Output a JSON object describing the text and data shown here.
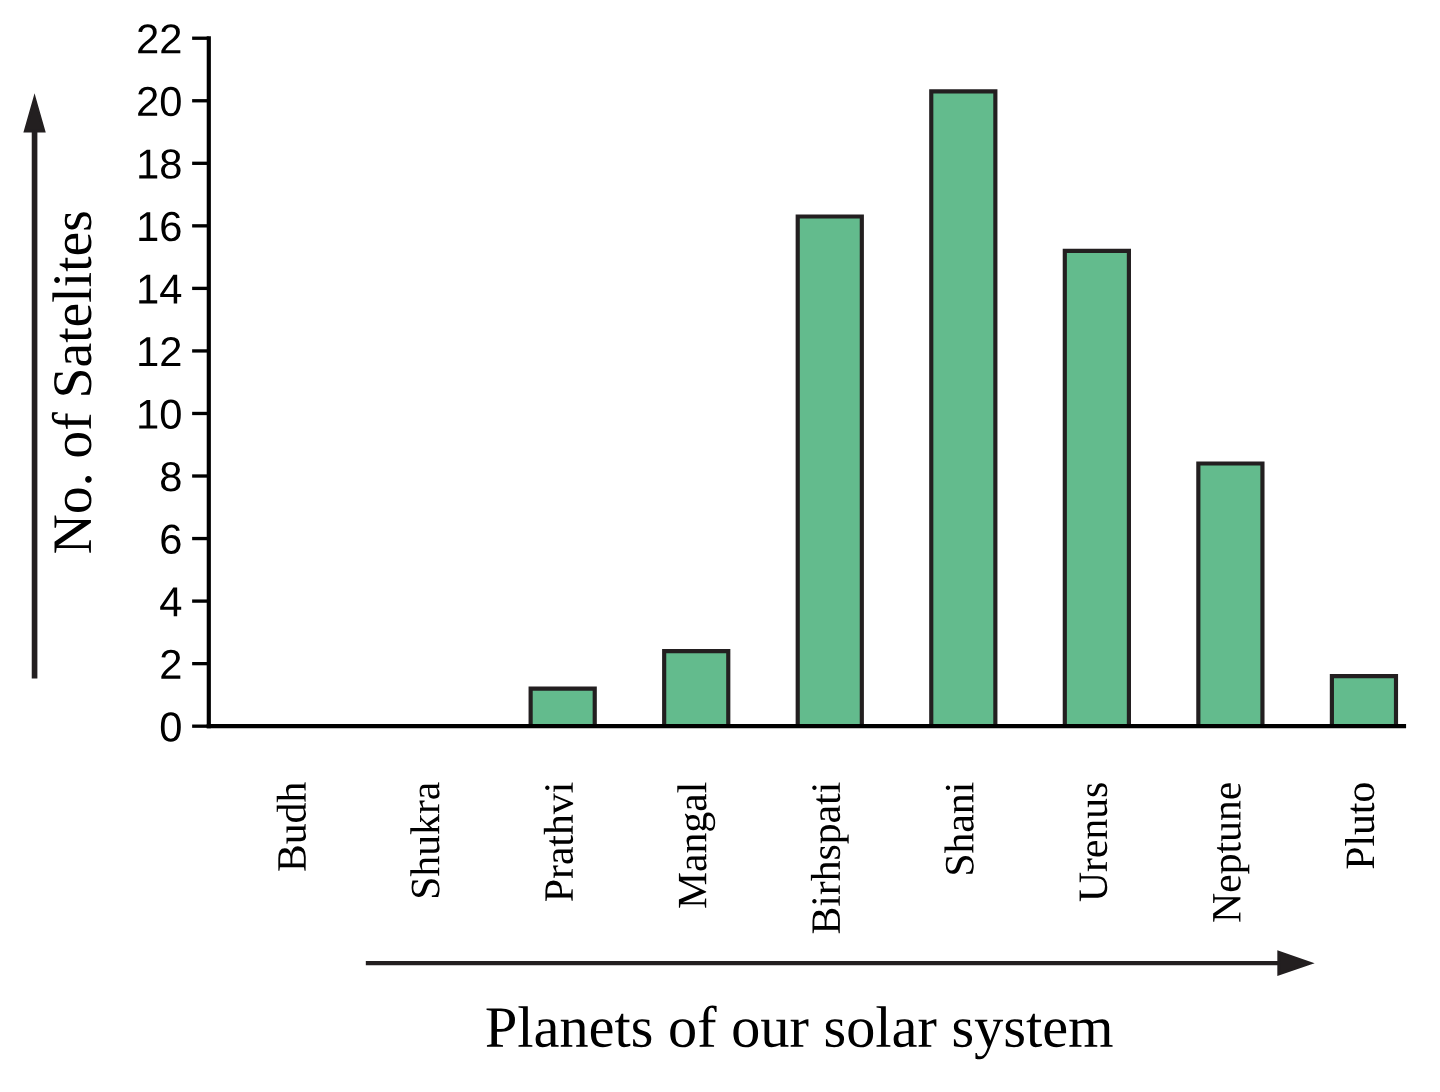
{
  "chart_data": {
    "type": "bar",
    "xlabel": "Planets of our solar system",
    "ylabel": "No. of Satelites",
    "categories": [
      "Budh",
      "Shukra",
      "Prathvi",
      "Mangal",
      "Birhspati",
      "Shani",
      "Urenus",
      "Neptune",
      "Pluto"
    ],
    "values": [
      0,
      0,
      1.2,
      2.4,
      16.3,
      20.3,
      15.2,
      8.4,
      1.6
    ],
    "color": "#63bb8d",
    "ylim": [
      0,
      22
    ],
    "yticks": [
      0,
      2,
      4,
      6,
      8,
      10,
      12,
      14,
      16,
      18,
      20,
      22
    ],
    "grid": false
  }
}
